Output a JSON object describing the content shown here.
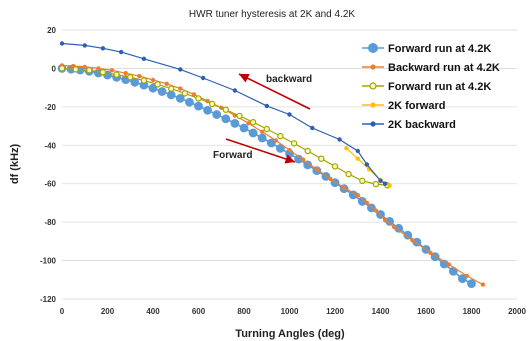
{
  "chart_data": {
    "type": "line",
    "title": "HWR tuner hysteresis at 2K and 4.2K",
    "xlabel": "Turning Angles (deg)",
    "ylabel": "df (kHz)",
    "xlim": [
      0,
      2000
    ],
    "ylim": [
      -120,
      20
    ],
    "xticks": [
      0,
      200,
      400,
      600,
      800,
      1000,
      1200,
      1400,
      1600,
      1800,
      2000
    ],
    "yticks": [
      -120,
      -100,
      -80,
      -60,
      -40,
      -20,
      0,
      20
    ],
    "grid": "horizontal",
    "legend_position": "top-right",
    "annotations": [
      {
        "text": "backward",
        "direction": "up-left"
      },
      {
        "text": "Forward",
        "direction": "down-right"
      }
    ],
    "series": [
      {
        "name": "Forward run at 4.2K",
        "color": "#5b9bd5",
        "marker": "circle-large",
        "points": [
          [
            0,
            0
          ],
          [
            40,
            -0.4
          ],
          [
            80,
            -0.8
          ],
          [
            120,
            -1.5
          ],
          [
            160,
            -2.4
          ],
          [
            200,
            -3.4
          ],
          [
            240,
            -4.6
          ],
          [
            280,
            -5.8
          ],
          [
            320,
            -7.2
          ],
          [
            360,
            -8.7
          ],
          [
            400,
            -10.3
          ],
          [
            440,
            -12
          ],
          [
            480,
            -13.8
          ],
          [
            520,
            -15.6
          ],
          [
            560,
            -17.6
          ],
          [
            600,
            -19.6
          ],
          [
            640,
            -21.8
          ],
          [
            680,
            -24
          ],
          [
            720,
            -26.2
          ],
          [
            760,
            -28.6
          ],
          [
            800,
            -31
          ],
          [
            840,
            -33.6
          ],
          [
            880,
            -36.2
          ],
          [
            920,
            -38.8
          ],
          [
            960,
            -41.6
          ],
          [
            1000,
            -44.4
          ],
          [
            1040,
            -47.2
          ],
          [
            1080,
            -50.2
          ],
          [
            1120,
            -53.2
          ],
          [
            1160,
            -56.2
          ],
          [
            1200,
            -59.4
          ],
          [
            1240,
            -62.6
          ],
          [
            1280,
            -65.8
          ],
          [
            1320,
            -69.2
          ],
          [
            1360,
            -72.6
          ],
          [
            1400,
            -76
          ],
          [
            1440,
            -79.6
          ],
          [
            1480,
            -83.2
          ],
          [
            1520,
            -86.8
          ],
          [
            1560,
            -90.4
          ],
          [
            1600,
            -94.2
          ],
          [
            1640,
            -98
          ],
          [
            1680,
            -101.8
          ],
          [
            1720,
            -105.6
          ],
          [
            1760,
            -109.4
          ],
          [
            1800,
            -112
          ]
        ]
      },
      {
        "name": "Backward run at 4.2K",
        "color": "#ed7d31",
        "marker": "circle-small",
        "points": [
          [
            1850,
            -112.5
          ],
          [
            1780,
            -108
          ],
          [
            1700,
            -102
          ],
          [
            1620,
            -96
          ],
          [
            1540,
            -89.5
          ],
          [
            1460,
            -82.5
          ],
          [
            1420,
            -79
          ],
          [
            1380,
            -74
          ],
          [
            1340,
            -70
          ],
          [
            1300,
            -66
          ],
          [
            1240,
            -62
          ],
          [
            1180,
            -57.5
          ],
          [
            1120,
            -52.5
          ],
          [
            1060,
            -47.5
          ],
          [
            1000,
            -42.5
          ],
          [
            940,
            -37.5
          ],
          [
            880,
            -33
          ],
          [
            820,
            -28.5
          ],
          [
            760,
            -24.5
          ],
          [
            700,
            -20.5
          ],
          [
            640,
            -17
          ],
          [
            580,
            -13.5
          ],
          [
            520,
            -10.5
          ],
          [
            460,
            -8
          ],
          [
            400,
            -6
          ],
          [
            340,
            -4
          ],
          [
            280,
            -2.5
          ],
          [
            220,
            -1
          ],
          [
            160,
            0
          ],
          [
            100,
            0.8
          ],
          [
            50,
            1.2
          ],
          [
            0,
            1.5
          ]
        ]
      },
      {
        "name": "Forward run at 4.2K",
        "color": "#a5a500",
        "marker": "circle-hollow",
        "points": [
          [
            0,
            0
          ],
          [
            60,
            -0.5
          ],
          [
            120,
            -1
          ],
          [
            180,
            -2
          ],
          [
            240,
            -3.2
          ],
          [
            300,
            -4.6
          ],
          [
            360,
            -6.3
          ],
          [
            420,
            -8.3
          ],
          [
            480,
            -10.5
          ],
          [
            540,
            -13
          ],
          [
            600,
            -15.6
          ],
          [
            660,
            -18.5
          ],
          [
            720,
            -21.5
          ],
          [
            780,
            -24.7
          ],
          [
            840,
            -28
          ],
          [
            900,
            -31.5
          ],
          [
            960,
            -35.2
          ],
          [
            1020,
            -39
          ],
          [
            1080,
            -43
          ],
          [
            1140,
            -47
          ],
          [
            1200,
            -51
          ],
          [
            1260,
            -55
          ],
          [
            1320,
            -58.5
          ],
          [
            1380,
            -60.2
          ],
          [
            1430,
            -60.8
          ]
        ]
      },
      {
        "name": "2K forward",
        "color": "#ffc000",
        "marker": "circle-small",
        "points": [
          [
            1250,
            -41.5
          ],
          [
            1300,
            -47
          ],
          [
            1350,
            -52.5
          ],
          [
            1400,
            -58
          ],
          [
            1440,
            -61
          ]
        ]
      },
      {
        "name": "2K backward",
        "color": "#2e5fb5",
        "marker": "circle-small",
        "points": [
          [
            1420,
            -60
          ],
          [
            1400,
            -58.5
          ],
          [
            1340,
            -50
          ],
          [
            1300,
            -43
          ],
          [
            1220,
            -37
          ],
          [
            1100,
            -31
          ],
          [
            1000,
            -24
          ],
          [
            900,
            -19.5
          ],
          [
            760,
            -11.5
          ],
          [
            620,
            -5
          ],
          [
            520,
            -0.5
          ],
          [
            360,
            5
          ],
          [
            260,
            8.5
          ],
          [
            180,
            10.5
          ],
          [
            100,
            12
          ],
          [
            0,
            13
          ]
        ]
      }
    ]
  }
}
